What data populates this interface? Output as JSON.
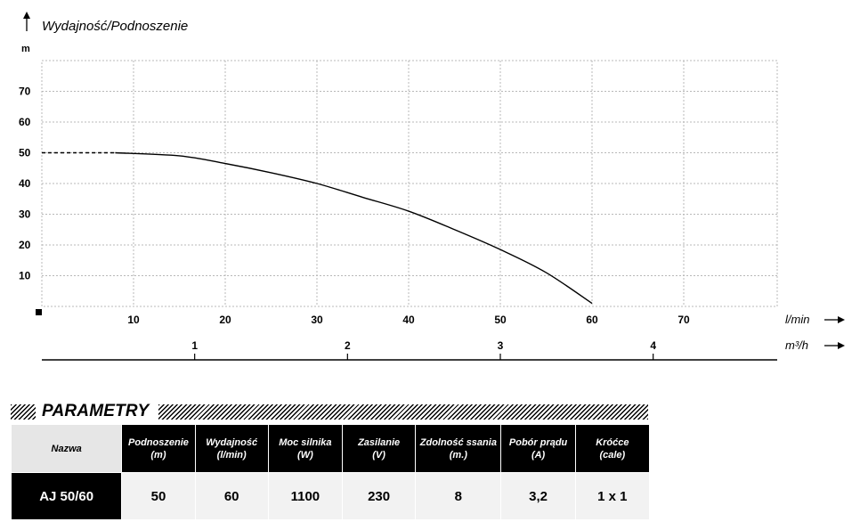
{
  "chart_data": {
    "type": "line",
    "title": "Wydajność/Podnoszenie",
    "ylabel": "m",
    "xlabel": "l/min",
    "x2label": "m³/h",
    "ylim": [
      0,
      80
    ],
    "xlim": [
      0,
      80
    ],
    "y_ticks": [
      10,
      20,
      30,
      40,
      50,
      60,
      70
    ],
    "x_ticks": [
      10,
      20,
      30,
      40,
      50,
      60,
      70
    ],
    "x2_ticks": [
      "1",
      "2",
      "3",
      "4"
    ],
    "grid": true,
    "series": [
      {
        "dashed_points": [
          [
            0,
            50
          ],
          [
            5,
            50
          ],
          [
            8,
            50
          ]
        ],
        "points": [
          [
            8,
            50
          ],
          [
            15,
            49
          ],
          [
            20,
            46.5
          ],
          [
            25,
            43.5
          ],
          [
            30,
            40
          ],
          [
            35,
            35.5
          ],
          [
            40,
            31
          ],
          [
            45,
            25
          ],
          [
            50,
            18.5
          ],
          [
            55,
            11
          ],
          [
            60,
            1
          ]
        ]
      }
    ]
  },
  "parameters": {
    "heading": "PARAMETRY",
    "columns": [
      {
        "label": "Nazwa",
        "unit": ""
      },
      {
        "label": "Podnoszenie",
        "unit": "(m)"
      },
      {
        "label": "Wydajność",
        "unit": "(l/min)"
      },
      {
        "label": "Moc silnika",
        "unit": "(W)"
      },
      {
        "label": "Zasilanie",
        "unit": "(V)"
      },
      {
        "label": "Zdolność ssania",
        "unit": "(m.)"
      },
      {
        "label": "Pobór prądu",
        "unit": "(A)"
      },
      {
        "label": "Króćce",
        "unit": "(cale)"
      }
    ],
    "rows": [
      [
        "AJ 50/60",
        "50",
        "60",
        "1100",
        "230",
        "8",
        "3,2",
        "1 x 1"
      ]
    ]
  }
}
